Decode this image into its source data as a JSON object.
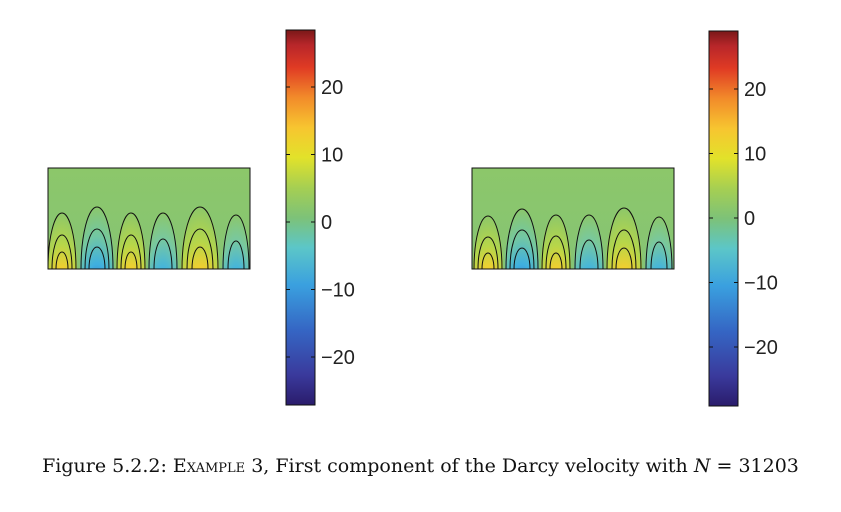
{
  "figure": {
    "caption_label": "Figure 5.2.2:",
    "caption_example": "Example 3",
    "caption_text": ", First component of the Darcy velocity with",
    "caption_var": "N",
    "caption_eq": " = 31203"
  },
  "colorbars": [
    {
      "ticks": [
        {
          "value": 20,
          "label": "20"
        },
        {
          "value": 10,
          "label": "10"
        },
        {
          "value": 0,
          "label": "0"
        },
        {
          "value": -10,
          "label": "−10"
        },
        {
          "value": -20,
          "label": "−20"
        }
      ]
    },
    {
      "ticks": [
        {
          "value": 20,
          "label": "20"
        },
        {
          "value": 10,
          "label": "10"
        },
        {
          "value": 0,
          "label": "0"
        },
        {
          "value": -10,
          "label": "−10"
        },
        {
          "value": -20,
          "label": "−20"
        }
      ]
    }
  ],
  "colormap": [
    "#2a1c6b",
    "#3a3a9c",
    "#3566c4",
    "#3aa0df",
    "#5cc6c8",
    "#7dc278",
    "#a6cf52",
    "#e2e22a",
    "#f7c530",
    "#f28b2a",
    "#e03b24",
    "#b8262a",
    "#7a1818"
  ]
}
